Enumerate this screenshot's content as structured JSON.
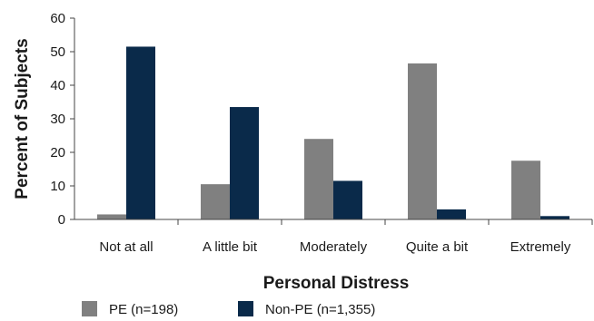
{
  "chart_data": {
    "type": "bar",
    "xlabel": "Personal Distress",
    "ylabel": "Percent of Subjects",
    "ylim": [
      0,
      60
    ],
    "yticks": [
      0,
      10,
      20,
      30,
      40,
      50,
      60
    ],
    "categories": [
      "Not at all",
      "A little bit",
      "Moderately",
      "Quite a bit",
      "Extremely"
    ],
    "series": [
      {
        "name": "PE (n=198)",
        "color": "#808080",
        "values": [
          1.5,
          10.5,
          24,
          46.5,
          17.5
        ]
      },
      {
        "name": "Non-PE (n=1,355)",
        "color": "#0a2a4a",
        "values": [
          51.5,
          33.5,
          11.5,
          3,
          1
        ]
      }
    ],
    "grid": false,
    "legend": "bottom-left"
  }
}
